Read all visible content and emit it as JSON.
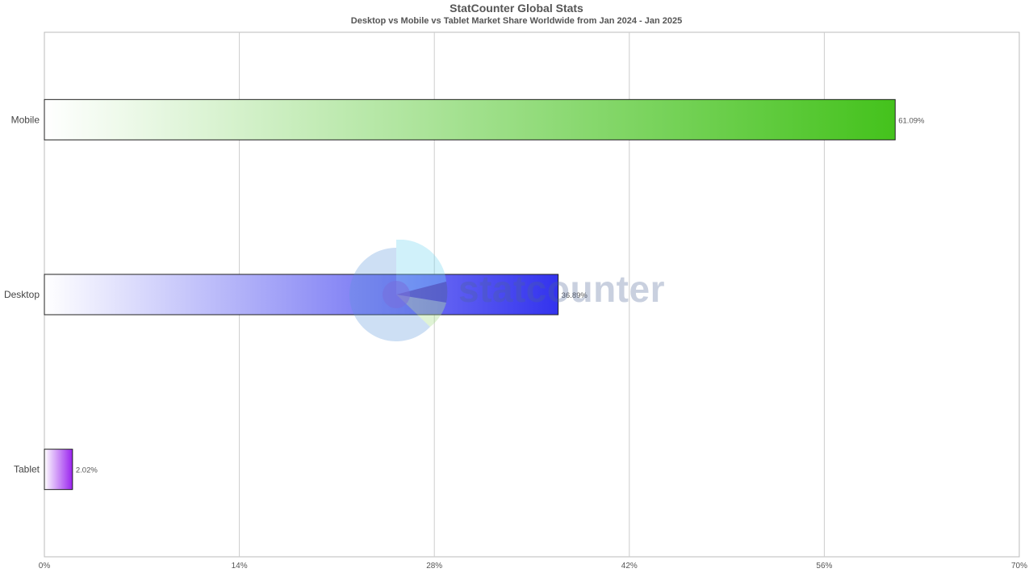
{
  "header": {
    "title": "StatCounter Global Stats",
    "subtitle": "Desktop vs Mobile vs Tablet Market Share Worldwide from Jan 2024 - Jan 2025"
  },
  "watermark": {
    "text": "statcounter",
    "logo_icon": "statcounter-pie-logo"
  },
  "chart_data": {
    "type": "bar",
    "orientation": "horizontal",
    "categories": [
      "Mobile",
      "Desktop",
      "Tablet"
    ],
    "values": [
      61.09,
      36.89,
      2.02
    ],
    "value_labels": [
      "61.09%",
      "36.89%",
      "2.02%"
    ],
    "xlim": [
      0,
      70
    ],
    "x_ticks": [
      0,
      14,
      28,
      42,
      56,
      70
    ],
    "x_tick_labels": [
      "0%",
      "14%",
      "28%",
      "42%",
      "56%",
      "70%"
    ],
    "grid": "vertical",
    "colors": [
      "#44c21c",
      "#3333ee",
      "#9922ee"
    ],
    "legend": "none",
    "xlabel": "",
    "ylabel": ""
  }
}
